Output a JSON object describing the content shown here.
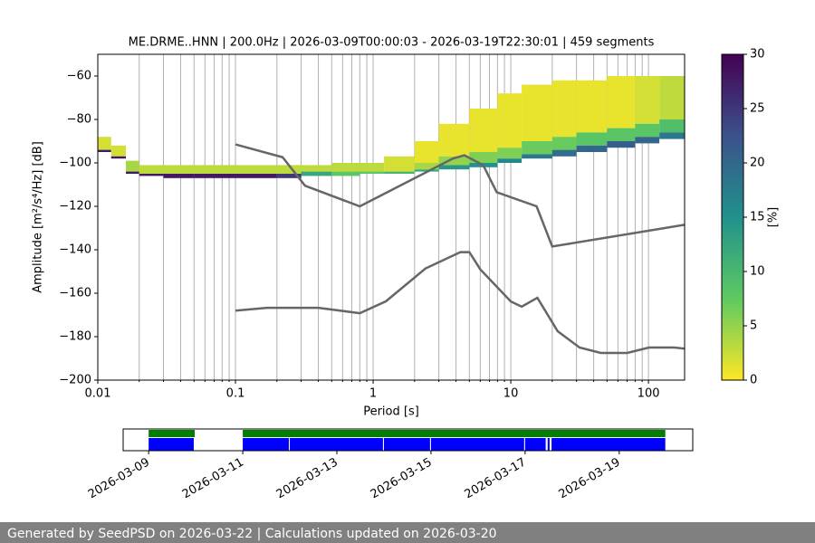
{
  "chart_data": [
    {
      "type": "heatmap",
      "title": "ME.DRME..HNN | 200.0Hz | 2026-03-09T00:00:03 - 2026-03-19T22:30:01 | 459 segments",
      "xlabel": "Period [s]",
      "ylabel": "Amplitude [m²/s⁴/Hz] [dB]",
      "log_x": true,
      "grid": "x",
      "xlim": [
        0.01,
        183
      ],
      "xticks": [
        0.01,
        0.1,
        1,
        10,
        100
      ],
      "xminorticks": [
        0.02,
        0.03,
        0.04,
        0.05,
        0.06,
        0.07,
        0.08,
        0.09,
        0.2,
        0.3,
        0.4,
        0.5,
        0.6,
        0.7,
        0.8,
        0.9,
        2,
        3,
        4,
        5,
        6,
        7,
        8,
        9,
        20,
        30,
        40,
        50,
        60,
        70,
        80,
        90
      ],
      "ylim": [
        -200,
        -50
      ],
      "yticks": [
        {
          "value": -200,
          "label": "−200"
        },
        {
          "value": -180,
          "label": "−180"
        },
        {
          "value": -160,
          "label": "−160"
        },
        {
          "value": -140,
          "label": "−140"
        },
        {
          "value": -120,
          "label": "−120"
        },
        {
          "value": -100,
          "label": "−100"
        },
        {
          "value": -80,
          "label": "−80"
        },
        {
          "value": -60,
          "label": "−60"
        }
      ],
      "heatmap": {
        "x_edges": [
          0.01,
          0.0125,
          0.016,
          0.02,
          0.03,
          0.05,
          0.1,
          0.2,
          0.3,
          0.5,
          0.8,
          1.2,
          2,
          3,
          5,
          8,
          12,
          20,
          30,
          50,
          80,
          120,
          183
        ],
        "columns": [
          [
            [
              -94,
              -88,
              2
            ],
            [
              -95,
              -94,
              28
            ]
          ],
          [
            [
              -97,
              -92,
              2
            ],
            [
              -98,
              -97,
              28
            ]
          ],
          [
            [
              -104,
              -99,
              4
            ],
            [
              -105,
              -104,
              28
            ]
          ],
          [
            [
              -105,
              -101,
              3
            ],
            [
              -106,
              -105,
              28
            ]
          ],
          [
            [
              -105,
              -101,
              3
            ],
            [
              -107,
              -105,
              28
            ]
          ],
          [
            [
              -105,
              -101,
              3
            ],
            [
              -107,
              -105,
              28
            ]
          ],
          [
            [
              -105,
              -101,
              3
            ],
            [
              -107,
              -105,
              28
            ]
          ],
          [
            [
              -105,
              -101,
              3
            ],
            [
              -107,
              -105,
              25
            ]
          ],
          [
            [
              -104,
              -101,
              3
            ],
            [
              -106,
              -104,
              12
            ]
          ],
          [
            [
              -104,
              -100,
              3
            ],
            [
              -106,
              -104,
              8
            ]
          ],
          [
            [
              -104,
              -100,
              3
            ],
            [
              -105,
              -104,
              8
            ]
          ],
          [
            [
              -104,
              -97,
              2
            ],
            [
              -105,
              -104,
              10
            ]
          ],
          [
            [
              -100,
              -90,
              1
            ],
            [
              -103,
              -100,
              4
            ],
            [
              -104,
              -103,
              12
            ]
          ],
          [
            [
              -97,
              -82,
              1
            ],
            [
              -101,
              -97,
              5
            ],
            [
              -103,
              -101,
              14
            ]
          ],
          [
            [
              -95,
              -75,
              1
            ],
            [
              -100,
              -95,
              6
            ],
            [
              -102,
              -100,
              15
            ]
          ],
          [
            [
              -93,
              -68,
              1
            ],
            [
              -98,
              -93,
              6
            ],
            [
              -100,
              -98,
              16
            ]
          ],
          [
            [
              -90,
              -64,
              1
            ],
            [
              -96,
              -90,
              7
            ],
            [
              -98,
              -96,
              18
            ]
          ],
          [
            [
              -88,
              -62,
              1
            ],
            [
              -94,
              -88,
              7
            ],
            [
              -97,
              -94,
              19
            ]
          ],
          [
            [
              -86,
              -62,
              1
            ],
            [
              -92,
              -86,
              8
            ],
            [
              -95,
              -92,
              20
            ]
          ],
          [
            [
              -84,
              -60,
              1
            ],
            [
              -90,
              -84,
              8
            ],
            [
              -93,
              -90,
              21
            ]
          ],
          [
            [
              -82,
              -60,
              2
            ],
            [
              -88,
              -82,
              8
            ],
            [
              -91,
              -88,
              20
            ]
          ],
          [
            [
              -80,
              -60,
              3
            ],
            [
              -86,
              -80,
              9
            ],
            [
              -89,
              -86,
              18
            ]
          ]
        ],
        "colormap": [
          "#fde725",
          "#5ec962",
          "#21918c",
          "#3b528b",
          "#440154"
        ],
        "clim": [
          0,
          30
        ],
        "cticks": [
          0,
          5,
          10,
          15,
          20,
          25,
          30
        ],
        "clabel": "[%]"
      },
      "series": [
        {
          "color": "#666666",
          "x": [
            0.1,
            0.22,
            0.32,
            0.8,
            3.8,
            4.6,
            6.3,
            7.9,
            15.4,
            20,
            183
          ],
          "values": [
            -91.5,
            -97.4,
            -110.5,
            -120,
            -98,
            -96.5,
            -101,
            -113.5,
            -120,
            -138.5,
            -128.5
          ]
        },
        {
          "color": "#666666",
          "x": [
            0.1,
            0.17,
            0.4,
            0.8,
            1.24,
            2.4,
            4.3,
            5,
            6,
            10,
            12,
            15.6,
            21.9,
            31.6,
            45,
            70,
            101,
            154,
            183
          ],
          "values": [
            -168,
            -166.7,
            -166.7,
            -169.2,
            -163.7,
            -148.6,
            -141.1,
            -141.1,
            -149,
            -163.8,
            -166.2,
            -162.1,
            -177.5,
            -185,
            -187.5,
            -187.5,
            -185,
            -185,
            -185.5
          ]
        }
      ]
    },
    {
      "type": "timeline",
      "xlim": [
        "2026-03-08T11:00",
        "2026-03-20T13:30"
      ],
      "xticks": [
        "2026-03-09",
        "2026-03-11",
        "2026-03-13",
        "2026-03-15",
        "2026-03-17",
        "2026-03-19"
      ],
      "series": [
        {
          "color": "#008000",
          "spans": [
            [
              "2026-03-09T00:00",
              "2026-03-09T23:30"
            ],
            [
              "2026-03-11T00:00",
              "2026-03-19T23:30"
            ]
          ]
        },
        {
          "color": "#0000ff",
          "spans": [
            [
              "2026-03-09T00:00",
              "2026-03-09T23:00"
            ],
            [
              "2026-03-11T00:00",
              "2026-03-11T23:30"
            ],
            [
              "2026-03-12T00:00",
              "2026-03-13T23:30"
            ],
            [
              "2026-03-14T00:00",
              "2026-03-14T23:30"
            ],
            [
              "2026-03-15T00:00",
              "2026-03-16T23:30"
            ],
            [
              "2026-03-17T00:00",
              "2026-03-17T10:30"
            ],
            [
              "2026-03-17T11:30",
              "2026-03-17T12:30"
            ],
            [
              "2026-03-17T13:30",
              "2026-03-19T23:30"
            ]
          ]
        }
      ]
    }
  ],
  "footer": "Generated by SeedPSD on 2026-03-22 | Calculations updated on 2026-03-20"
}
